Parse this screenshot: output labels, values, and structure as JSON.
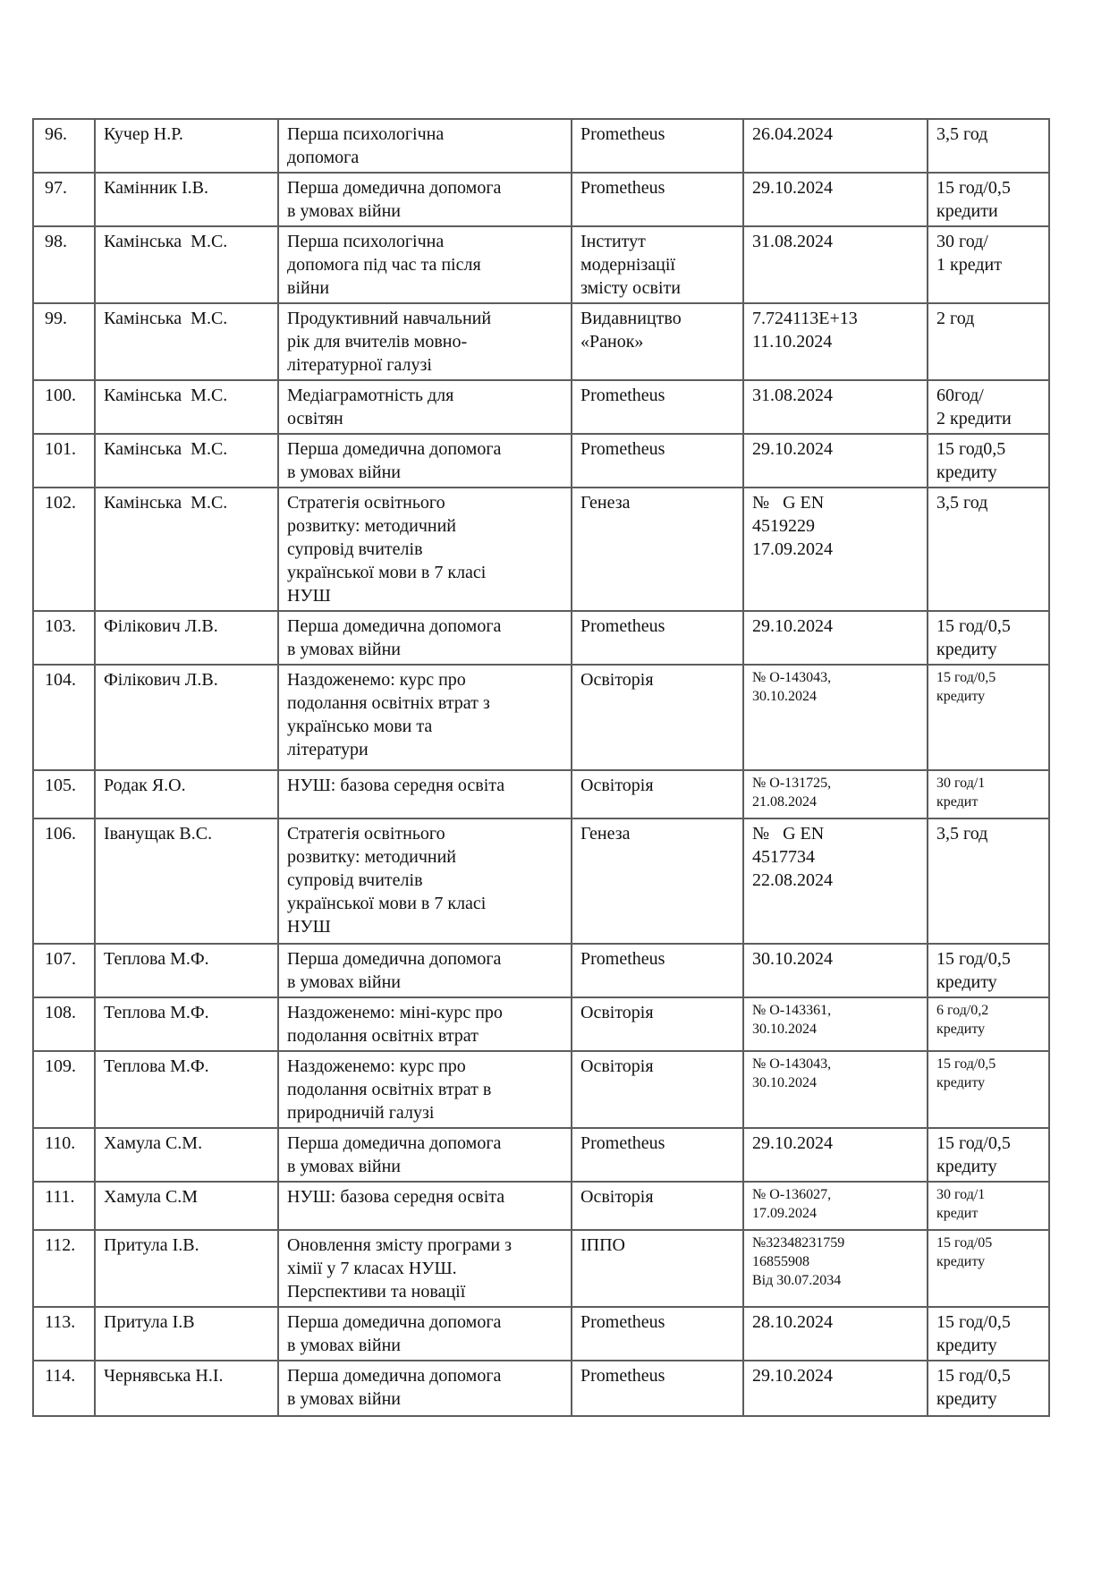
{
  "page": {
    "background_color": "#ffffff",
    "text_color": "#111111",
    "table_border_color": "#5d5d5d"
  },
  "table": {
    "description": "certificates-list-continuation",
    "columns": [
      "number",
      "teacher_name",
      "course_title",
      "provider",
      "certificate_date",
      "hours_credits"
    ],
    "rows": [
      {
        "num": "96.",
        "name": "Кучер Н.Р.",
        "course": "Перша психологічна\nдопомога",
        "provider": "Prometheus",
        "date": "26.04.2024",
        "hours": "3,5 год",
        "small_date_hours": false
      },
      {
        "num": "97.",
        "name": "Камінник І.В.",
        "course": "Перша домедична допомога\nв умовах війни",
        "provider": "Prometheus",
        "date": "29.10.2024",
        "hours": "15 год/0,5\nкредити",
        "small_date_hours": false
      },
      {
        "num": "98.",
        "name": "Камінська  М.С.",
        "course": "Перша психологічна\nдопомога під час та після\nвійни",
        "provider": "Інститут\nмодернізації\nзмісту освіти",
        "date": "31.08.2024",
        "hours": "30 год/\n1 кредит",
        "small_date_hours": false
      },
      {
        "num": "99.",
        "name": "Камінська  М.С.",
        "course": "Продуктивний навчальний\nрік для вчителів мовно-\nлітературної галузі",
        "provider": "Видавництво\n«Ранок»",
        "date": "7.724113E+13\n11.10.2024",
        "hours": "2 год",
        "small_date_hours": false
      },
      {
        "num": "100.",
        "name": "Камінська  М.С.",
        "course": "Медіаграмотність для\nосвітян",
        "provider": "Prometheus",
        "date": "31.08.2024",
        "hours": "60год/\n2 кредити",
        "small_date_hours": false
      },
      {
        "num": "101.",
        "name": "Камінська  М.С.",
        "course": "Перша домедична допомога\nв умовах війни",
        "provider": "Prometheus",
        "date": "29.10.2024",
        "hours": "15 год0,5\nкредиту",
        "small_date_hours": false
      },
      {
        "num": "102.",
        "name": "Камінська  М.С.",
        "course": "Стратегія освітнього\nрозвитку: методичний\nсупровід вчителів\nукраїнської мови в 7 класі\nНУШ",
        "provider": "Генеза",
        "date": "№   G EN\n4519229\n17.09.2024",
        "hours": "3,5 год",
        "small_date_hours": false
      },
      {
        "num": "103.",
        "name": "Філікович Л.В.",
        "course": "Перша домедична допомога\nв умовах війни",
        "provider": "Prometheus",
        "date": "29.10.2024",
        "hours": "15 год/0,5\nкредиту",
        "small_date_hours": false
      },
      {
        "num": "104.",
        "name": "Філікович Л.В.",
        "course": "Наздоженемо: курс про\nподолання освітніх втрат з\nукраїнсько мови та\nлітератури",
        "provider": "Освіторія",
        "date": "№ О-143043,\n30.10.2024",
        "hours": "15 год/0,5\nкредиту",
        "small_date_hours": true
      },
      {
        "num": "105.",
        "name": "Родак Я.О.",
        "course": "НУШ: базова середня освіта",
        "provider": "Освіторія",
        "date": "№ О-131725,\n21.08.2024",
        "hours": "30 год/1\nкредит",
        "small_date_hours": true
      },
      {
        "num": "106.",
        "name": "Іванущак В.С.",
        "course": "Стратегія освітнього\nрозвитку: методичний\nсупровід вчителів\nукраїнської мови в 7 класі\nНУШ",
        "provider": "Генеза",
        "date": "№   G EN\n4517734\n22.08.2024",
        "hours": "3,5 год",
        "small_date_hours": false
      },
      {
        "num": "107.",
        "name": "Теплова М.Ф.",
        "course": "Перша домедична допомога\nв умовах війни",
        "provider": "Prometheus",
        "date": "30.10.2024",
        "hours": "15 год/0,5\nкредиту",
        "small_date_hours": false
      },
      {
        "num": "108.",
        "name": "Теплова М.Ф.",
        "course": "Наздоженемо: міні-курс про\nподолання освітніх втрат",
        "provider": "Освіторія",
        "date": "№ О-143361,\n30.10.2024",
        "hours": "6 год/0,2\nкредиту",
        "small_date_hours": true
      },
      {
        "num": "109.",
        "name": "Теплова М.Ф.",
        "course": "Наздоженемо: курс про\nподолання освітніх втрат в\nприродничій галузі",
        "provider": "Освіторія",
        "date": "№ О-143043,\n30.10.2024",
        "hours": "15 год/0,5\nкредиту",
        "small_date_hours": true
      },
      {
        "num": "110.",
        "name": "Хамула С.М.",
        "course": "Перша домедична допомога\nв умовах війни",
        "provider": "Prometheus",
        "date": "29.10.2024",
        "hours": "15 год/0,5\nкредиту",
        "small_date_hours": false
      },
      {
        "num": "111.",
        "name": "Хамула С.М",
        "course": "НУШ: базова середня освіта",
        "provider": "Освіторія",
        "date": "№ О-136027,\n17.09.2024",
        "hours": "30 год/1\nкредит",
        "small_date_hours": true
      },
      {
        "num": "112.",
        "name": "Притула І.В.",
        "course": "Оновлення змісту програми з\nхімії у 7 класах НУШ.\nПерспективи та новації",
        "provider": "ІППО",
        "date": "№32348231759\n16855908\nВід 30.07.2034",
        "hours": "15 год/05\nкредиту",
        "small_date_hours": true
      },
      {
        "num": "113.",
        "name": "Притула І.В",
        "course": "Перша домедична допомога\nв умовах війни",
        "provider": "Prometheus",
        "date": "28.10.2024",
        "hours": "15 год/0,5\nкредиту",
        "small_date_hours": false
      },
      {
        "num": "114.",
        "name": "Чернявська Н.І.",
        "course": "Перша домедична допомога\nв умовах війни",
        "provider": "Prometheus",
        "date": "29.10.2024",
        "hours": "15 год/0,5\nкредиту",
        "small_date_hours": false
      }
    ]
  }
}
